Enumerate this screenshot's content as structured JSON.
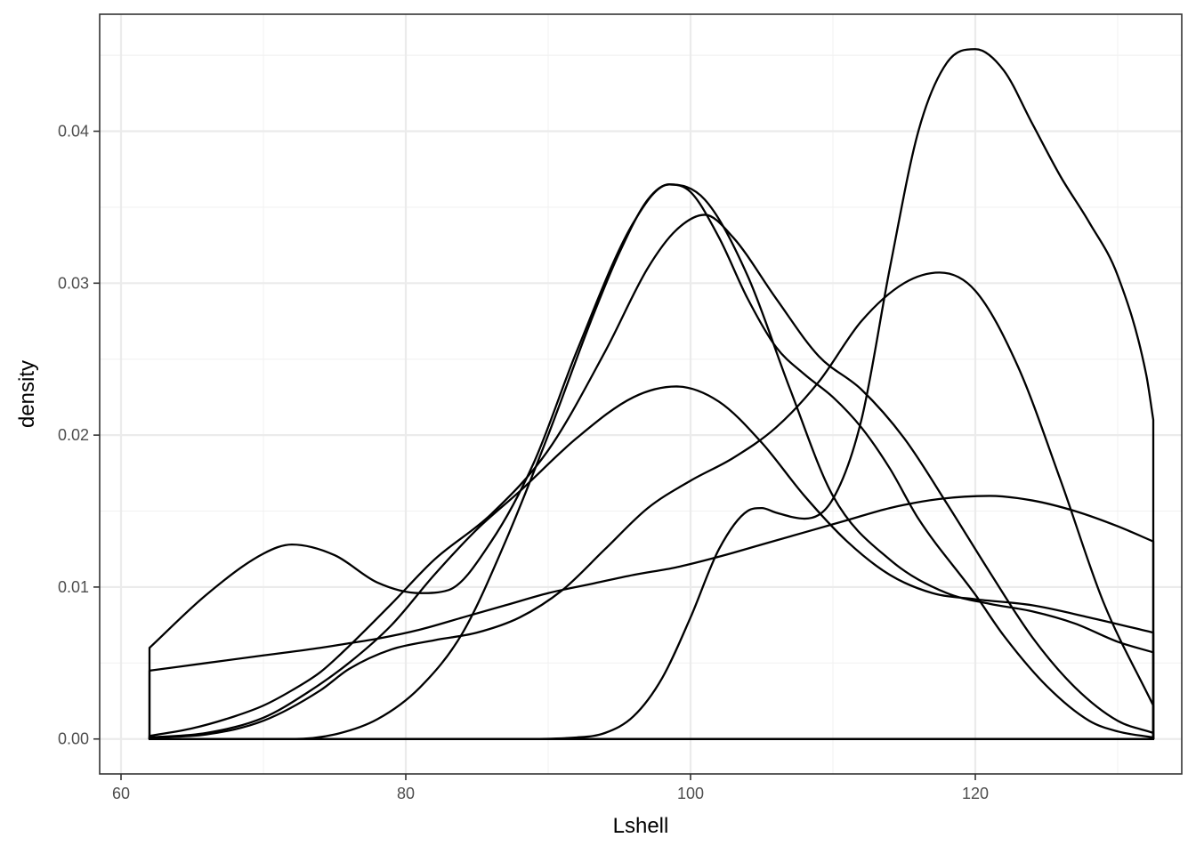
{
  "chart_data": {
    "type": "area",
    "title": "",
    "xlabel": "Lshell",
    "ylabel": "density",
    "xlim": [
      58.5,
      134.5
    ],
    "ylim": [
      -0.0023,
      0.0477
    ],
    "x_ticks": [
      60,
      80,
      100,
      120
    ],
    "x_tick_labels": [
      "60",
      "80",
      "100",
      "120"
    ],
    "y_ticks": [
      0.0,
      0.01,
      0.02,
      0.03,
      0.04
    ],
    "y_tick_labels": [
      "0.00",
      "0.01",
      "0.02",
      "0.03",
      "0.04"
    ],
    "grid": true,
    "legend": "none",
    "line_color": "#000000",
    "fill_color": "none",
    "series": [
      {
        "x": [
          62,
          66,
          70,
          72,
          75,
          78,
          81,
          83,
          86,
          89,
          92,
          96,
          98.5,
          101,
          104,
          107,
          110,
          114,
          118,
          121,
          124,
          127,
          130,
          132.5
        ],
        "y": [
          0.006,
          0.0095,
          0.0122,
          0.0128,
          0.0121,
          0.0103,
          0.0096,
          0.0098,
          0.013,
          0.0182,
          0.0255,
          0.034,
          0.0365,
          0.0355,
          0.0305,
          0.023,
          0.016,
          0.0118,
          0.0096,
          0.0089,
          0.0084,
          0.0076,
          0.0064,
          0.0057
        ]
      },
      {
        "x": [
          62,
          65,
          68,
          70,
          72,
          74,
          76,
          79,
          82,
          86,
          90,
          94,
          97,
          99,
          101,
          103,
          106,
          109,
          112,
          115,
          118,
          121,
          124,
          127,
          130,
          132.5
        ],
        "y": [
          0.0002,
          0.0007,
          0.0015,
          0.0022,
          0.0032,
          0.0044,
          0.0061,
          0.0089,
          0.0118,
          0.0148,
          0.019,
          0.0255,
          0.031,
          0.0335,
          0.0345,
          0.033,
          0.029,
          0.0252,
          0.023,
          0.0198,
          0.0155,
          0.011,
          0.0067,
          0.0034,
          0.0012,
          0.0004
        ]
      },
      {
        "x": [
          62,
          66,
          70,
          73,
          76,
          79,
          82,
          85,
          88,
          92,
          96,
          99,
          102,
          105,
          108,
          111,
          114,
          117,
          120,
          124,
          128,
          132.5
        ],
        "y": [
          0.0001,
          0.0004,
          0.0014,
          0.003,
          0.005,
          0.0075,
          0.0108,
          0.0138,
          0.0163,
          0.0198,
          0.0225,
          0.0232,
          0.0222,
          0.0195,
          0.016,
          0.013,
          0.0108,
          0.0096,
          0.0092,
          0.0088,
          0.008,
          0.007
        ]
      },
      {
        "x": [
          62,
          66,
          70,
          74,
          76,
          78,
          81,
          84,
          87,
          90,
          93,
          96,
          99,
          102,
          105,
          108,
          111,
          114,
          117.5,
          121,
          124,
          127,
          130,
          132.5
        ],
        "y": [
          0.0045,
          0.005,
          0.0055,
          0.006,
          0.0063,
          0.0066,
          0.0072,
          0.008,
          0.0088,
          0.0096,
          0.0102,
          0.0108,
          0.0113,
          0.012,
          0.0128,
          0.0136,
          0.0144,
          0.0152,
          0.0158,
          0.016,
          0.0157,
          0.015,
          0.014,
          0.013
        ]
      },
      {
        "x": [
          62,
          66,
          70,
          74,
          76,
          79,
          82,
          85,
          88,
          91,
          94,
          97,
          100,
          103,
          106,
          109,
          112,
          115,
          117.5,
          120,
          123,
          126,
          129,
          132.5
        ],
        "y": [
          0.0001,
          0.0003,
          0.0012,
          0.0032,
          0.0046,
          0.0059,
          0.0065,
          0.007,
          0.008,
          0.0098,
          0.0125,
          0.0152,
          0.017,
          0.0185,
          0.0205,
          0.0235,
          0.0275,
          0.03,
          0.0307,
          0.0295,
          0.0245,
          0.017,
          0.009,
          0.0022
        ]
      },
      {
        "x": [
          62,
          68,
          72,
          75,
          78,
          81,
          84,
          87,
          90,
          93,
          95,
          97,
          98.5,
          100,
          102,
          104,
          106,
          108,
          110,
          112,
          114,
          116,
          120,
          122,
          125,
          128,
          130,
          132.5
        ],
        "y": [
          0.0,
          0.0,
          0.0,
          0.0003,
          0.0013,
          0.0034,
          0.007,
          0.013,
          0.02,
          0.0275,
          0.032,
          0.0355,
          0.0365,
          0.036,
          0.033,
          0.029,
          0.0258,
          0.024,
          0.0225,
          0.0205,
          0.0178,
          0.0145,
          0.0095,
          0.0068,
          0.0035,
          0.0012,
          0.0005,
          0.0001
        ]
      },
      {
        "x": [
          62,
          80,
          88,
          92,
          94,
          96,
          98,
          100,
          102,
          104,
          105,
          106,
          108,
          110,
          112,
          114,
          116,
          118,
          120,
          122,
          124,
          126,
          128,
          130,
          132,
          132.5
        ],
        "y": [
          0.0,
          0.0,
          0.0,
          0.0001,
          0.0004,
          0.0015,
          0.004,
          0.008,
          0.0125,
          0.015,
          0.0152,
          0.0149,
          0.0145,
          0.0158,
          0.021,
          0.031,
          0.04,
          0.0445,
          0.0454,
          0.044,
          0.0405,
          0.037,
          0.034,
          0.0305,
          0.024,
          0.021
        ]
      }
    ]
  }
}
